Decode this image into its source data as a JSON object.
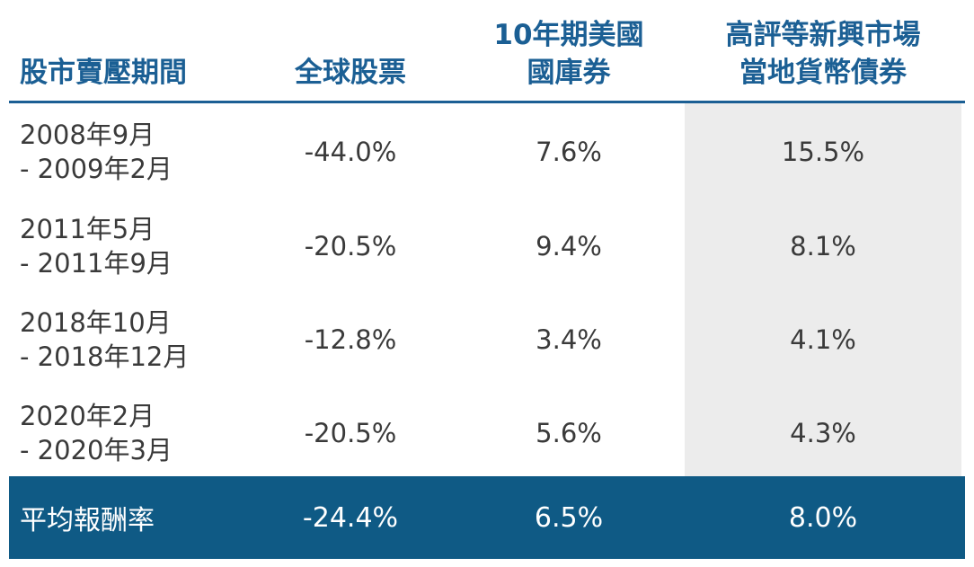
{
  "table": {
    "header": [
      [
        "股市賣壓期間"
      ],
      [
        "全球股票"
      ],
      [
        "10年期美國",
        "國庫券"
      ],
      [
        "高評等新興市場",
        "當地貨幣債券"
      ]
    ],
    "rows": [
      {
        "period": [
          "2008年9月",
          "- 2009年2月"
        ],
        "values": [
          "-44.0%",
          "7.6%",
          "15.5%"
        ]
      },
      {
        "period": [
          "2011年5月",
          "- 2011年9月"
        ],
        "values": [
          "-20.5%",
          "9.4%",
          "8.1%"
        ]
      },
      {
        "period": [
          "2018年10月",
          "- 2018年12月"
        ],
        "values": [
          "-12.8%",
          "3.4%",
          "4.1%"
        ]
      },
      {
        "period": [
          "2020年2月",
          "- 2020年3月"
        ],
        "values": [
          "-20.5%",
          "5.6%",
          "4.3%"
        ]
      }
    ],
    "footer": {
      "label": "平均報酬率",
      "values": [
        "-24.4%",
        "6.5%",
        "8.0%"
      ]
    }
  }
}
